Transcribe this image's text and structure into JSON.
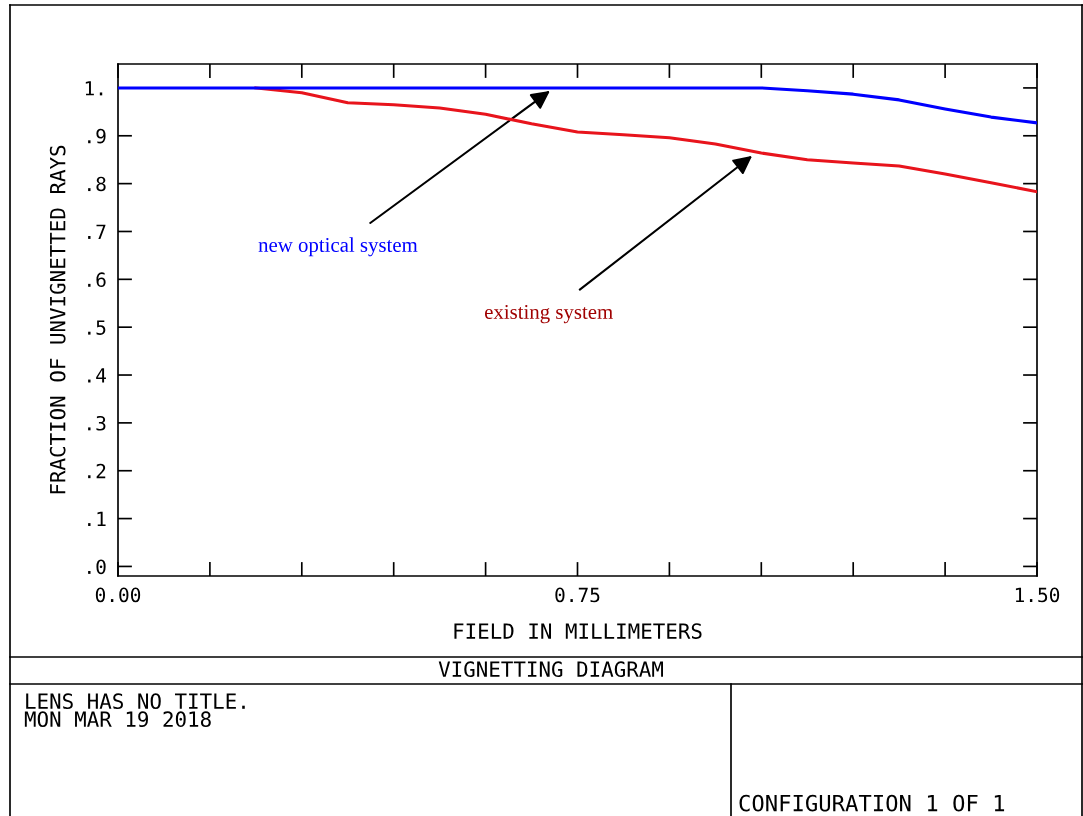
{
  "chart_data": {
    "type": "line",
    "title": "VIGNETTING DIAGRAM",
    "xlabel": "FIELD IN MILLIMETERS",
    "ylabel": "FRACTION OF UNVIGNETTED RAYS",
    "x": [
      0,
      0.075,
      0.15,
      0.225,
      0.3,
      0.375,
      0.45,
      0.525,
      0.6,
      0.675,
      0.75,
      0.825,
      0.9,
      0.975,
      1.05,
      1.125,
      1.2,
      1.275,
      1.35,
      1.425,
      1.5
    ],
    "series": [
      {
        "color": "#0000ff",
        "values": [
          1.0,
          1.0,
          1.0,
          1.0,
          1.0,
          1.0,
          1.0,
          1.0,
          1.0,
          1.0,
          1.0,
          1.0,
          1.0,
          1.0,
          1.0,
          0.994,
          0.987,
          0.975,
          0.956,
          0.939,
          0.927
        ]
      },
      {
        "color": "#e8141c",
        "values": [
          null,
          null,
          null,
          1.0,
          0.99,
          0.969,
          0.965,
          0.958,
          0.945,
          0.925,
          0.908,
          0.902,
          0.896,
          0.883,
          0.864,
          0.85,
          0.843,
          0.837,
          0.82,
          0.802,
          0.783
        ]
      }
    ],
    "xlim": [
      0,
      1.5
    ],
    "ylim": [
      -0.02,
      1.05
    ],
    "xticks": [
      {
        "value": 0,
        "label": "0.00"
      },
      {
        "value": 0.15,
        "label": null
      },
      {
        "value": 0.3,
        "label": null
      },
      {
        "value": 0.45,
        "label": null
      },
      {
        "value": 0.6,
        "label": null
      },
      {
        "value": 0.75,
        "label": "0.75"
      },
      {
        "value": 0.9,
        "label": null
      },
      {
        "value": 1.05,
        "label": null
      },
      {
        "value": 1.2,
        "label": null
      },
      {
        "value": 1.35,
        "label": null
      },
      {
        "value": 1.5,
        "label": "1.50"
      }
    ],
    "yticks": [
      {
        "value": 0,
        "label": ".0"
      },
      {
        "value": 0.1,
        "label": ".1"
      },
      {
        "value": 0.2,
        "label": ".2"
      },
      {
        "value": 0.3,
        "label": ".3"
      },
      {
        "value": 0.4,
        "label": ".4"
      },
      {
        "value": 0.5,
        "label": ".5"
      },
      {
        "value": 0.6,
        "label": ".6"
      },
      {
        "value": 0.7,
        "label": ".7"
      },
      {
        "value": 0.8,
        "label": ".8"
      },
      {
        "value": 0.9,
        "label": ".9"
      },
      {
        "value": 1.0,
        "label": "1."
      }
    ],
    "grid": false,
    "marker": "none",
    "line_style": "solid",
    "annotations": [
      {
        "text": "new optical system",
        "x": 0.705,
        "y": 0.994
      },
      {
        "text": "existing system",
        "x": 1.035,
        "y": 0.858
      },
      "LENS HAS NO TITLE.",
      "MON MAR 19 2018",
      "CONFIGURATION 1 OF 1"
    ]
  }
}
